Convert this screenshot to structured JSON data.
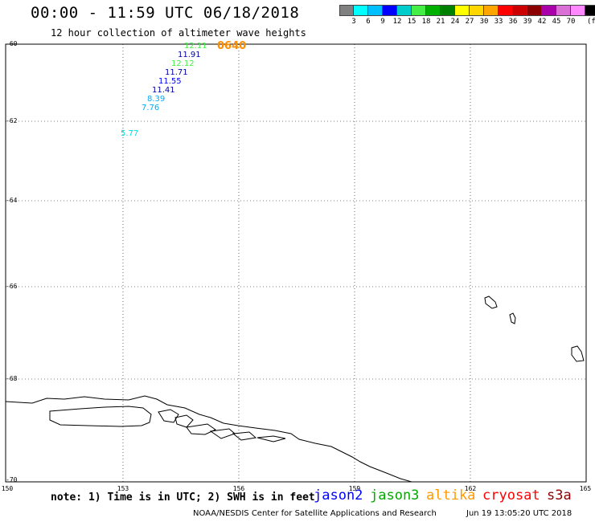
{
  "header": {
    "title": "00:00 - 11:59 UTC 06/18/2018",
    "subtitle": "12 hour collection of altimeter wave heights"
  },
  "colorbar": {
    "colors": [
      "#808080",
      "#00ffff",
      "#00bfff",
      "#0000ff",
      "#00cccc",
      "#44ee44",
      "#00b000",
      "#008000",
      "#ffff00",
      "#ffd700",
      "#ffa500",
      "#ff0000",
      "#cc0000",
      "#8b0000",
      "#aa00aa",
      "#da70d6",
      "#ff88ff",
      "#000000"
    ],
    "labels": [
      "3",
      "6",
      "9",
      "12",
      "15",
      "18",
      "21",
      "24",
      "27",
      "30",
      "33",
      "36",
      "39",
      "42",
      "45",
      "70"
    ],
    "unit": "(ft)"
  },
  "axes": {
    "lat_labels": [
      "-60",
      "-62",
      "-64",
      "-66",
      "-68",
      "-70"
    ],
    "lon_labels": [
      "150",
      "153",
      "156",
      "159",
      "162",
      "165"
    ]
  },
  "observations": [
    {
      "value": "12.11",
      "color": "#44ee44"
    },
    {
      "value": "11.91",
      "color": "#0000aa"
    },
    {
      "value": "12.12",
      "color": "#44ee44"
    },
    {
      "value": "11.71",
      "color": "#0000aa"
    },
    {
      "value": "11.55",
      "color": "#0000ff"
    },
    {
      "value": "11.41",
      "color": "#0000aa"
    },
    {
      "value": "8.39",
      "color": "#00aaff"
    },
    {
      "value": "7.76",
      "color": "#00aaff"
    },
    {
      "value": "5.77",
      "color": "#00dddd"
    }
  ],
  "time_label": "0640",
  "note": "note: 1) Time is in UTC; 2) SWH is in feet",
  "legend": [
    {
      "name": "jason2",
      "color": "#0000ff"
    },
    {
      "name": "jason3",
      "color": "#00aa00"
    },
    {
      "name": "altika",
      "color": "#ff9900"
    },
    {
      "name": "cryosat",
      "color": "#ff0000"
    },
    {
      "name": "s3a",
      "color": "#8b0000"
    }
  ],
  "footer": {
    "credit": "NOAA/NESDIS Center for Satellite Applications and Research",
    "timestamp": "Jun 19 13:05:20 UTC 2018"
  }
}
